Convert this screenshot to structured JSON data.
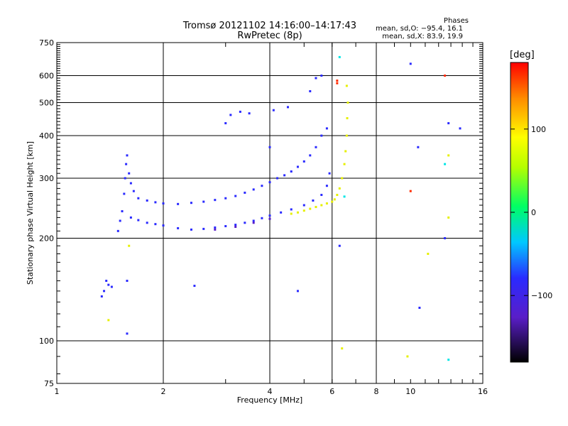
{
  "header": {
    "title_line1": "Tromsø 20121102 14:16:00–14:17:43",
    "title_line2": "RwPretec (8p)"
  },
  "phase_stats": {
    "heading": "Phases",
    "line_o": "mean, sd,O: −95.4, 16.1",
    "line_x": "mean, sd,X:  83.9, 19.9"
  },
  "chart_data": {
    "type": "scatter",
    "title": "Tromsø 20121102 14:16:00–14:17:43",
    "subtitle": "RwPretec (8p)",
    "xlabel": "Frequency [MHz]",
    "ylabel": "Stationary phase Virtual Height [km]",
    "x_scale": "log",
    "y_scale": "log",
    "xlim": [
      1,
      16
    ],
    "ylim": [
      75,
      750
    ],
    "x_ticks": [
      1,
      2,
      4,
      6,
      8,
      10,
      16
    ],
    "x_tick_labels": [
      "1",
      "2",
      "4",
      "6",
      "8",
      "10",
      "16"
    ],
    "x_major_grid": [
      2,
      4,
      6,
      8
    ],
    "y_ticks": [
      75,
      100,
      200,
      300,
      400,
      500,
      600,
      750
    ],
    "y_tick_labels": [
      "75",
      "100",
      "200",
      "300",
      "400",
      "500",
      "600",
      "750"
    ],
    "y_major_grid": [
      100,
      200,
      300,
      400,
      500,
      600
    ],
    "grid": true,
    "color_scale": {
      "label": "[deg]",
      "ticks": [
        100,
        0,
        -100
      ],
      "tick_labels": [
        "100",
        "0",
        "−100"
      ],
      "range": [
        -180,
        180
      ],
      "colors": {
        "o_mode": "#2a2aff",
        "x_mode": "#e6f000",
        "purple": "#5a1ec8"
      }
    },
    "series": [
      {
        "name": "O",
        "color": "#2a2aff",
        "points": [
          [
            1.34,
            135
          ],
          [
            1.36,
            140
          ],
          [
            1.38,
            150
          ],
          [
            1.4,
            146
          ],
          [
            1.43,
            144
          ],
          [
            1.49,
            210
          ],
          [
            1.51,
            225
          ],
          [
            1.53,
            240
          ],
          [
            1.55,
            270
          ],
          [
            1.56,
            300
          ],
          [
            1.57,
            330
          ],
          [
            1.58,
            350
          ],
          [
            1.6,
            310
          ],
          [
            1.62,
            290
          ],
          [
            1.65,
            275
          ],
          [
            1.7,
            262
          ],
          [
            1.8,
            258
          ],
          [
            1.9,
            255
          ],
          [
            2.0,
            253
          ],
          [
            2.2,
            252
          ],
          [
            2.4,
            254
          ],
          [
            2.6,
            256
          ],
          [
            2.8,
            259
          ],
          [
            3.0,
            262
          ],
          [
            3.2,
            266
          ],
          [
            3.4,
            272
          ],
          [
            3.6,
            278
          ],
          [
            3.8,
            285
          ],
          [
            4.0,
            292
          ],
          [
            4.2,
            300
          ],
          [
            4.4,
            306
          ],
          [
            4.6,
            314
          ],
          [
            4.8,
            324
          ],
          [
            5.0,
            336
          ],
          [
            5.2,
            350
          ],
          [
            5.4,
            370
          ],
          [
            5.6,
            400
          ],
          [
            5.8,
            420
          ],
          [
            1.62,
            230
          ],
          [
            1.7,
            226
          ],
          [
            1.8,
            222
          ],
          [
            1.9,
            220
          ],
          [
            2.0,
            218
          ],
          [
            2.2,
            214
          ],
          [
            2.4,
            212
          ],
          [
            2.6,
            213
          ],
          [
            2.8,
            215
          ],
          [
            3.0,
            217
          ],
          [
            3.2,
            219
          ],
          [
            3.4,
            222
          ],
          [
            3.6,
            225
          ],
          [
            3.8,
            229
          ],
          [
            4.0,
            233
          ],
          [
            4.3,
            238
          ],
          [
            4.6,
            243
          ],
          [
            5.0,
            250
          ],
          [
            5.3,
            258
          ],
          [
            5.6,
            268
          ],
          [
            5.8,
            285
          ],
          [
            5.9,
            310
          ],
          [
            3.1,
            460
          ],
          [
            3.3,
            470
          ],
          [
            3.5,
            465
          ],
          [
            4.1,
            475
          ],
          [
            4.5,
            485
          ],
          [
            5.4,
            590
          ],
          [
            5.6,
            600
          ],
          [
            5.2,
            540
          ],
          [
            1.58,
            150
          ],
          [
            1.58,
            105
          ],
          [
            2.45,
            145
          ],
          [
            3.0,
            435
          ],
          [
            4.0,
            370
          ],
          [
            6.3,
            190
          ],
          [
            10.0,
            650
          ],
          [
            10.5,
            370
          ],
          [
            10.6,
            125
          ],
          [
            12.5,
            200
          ],
          [
            12.8,
            435
          ],
          [
            13.8,
            420
          ],
          [
            4.8,
            140
          ]
        ]
      },
      {
        "name": "X",
        "color": "#e6f000",
        "points": [
          [
            4.6,
            236
          ],
          [
            4.8,
            238
          ],
          [
            5.0,
            241
          ],
          [
            5.2,
            244
          ],
          [
            5.4,
            247
          ],
          [
            5.6,
            250
          ],
          [
            5.8,
            253
          ],
          [
            6.0,
            256
          ],
          [
            6.1,
            260
          ],
          [
            6.2,
            268
          ],
          [
            6.3,
            280
          ],
          [
            6.4,
            300
          ],
          [
            6.5,
            330
          ],
          [
            6.55,
            360
          ],
          [
            6.6,
            400
          ],
          [
            6.62,
            450
          ],
          [
            6.65,
            500
          ],
          [
            6.6,
            560
          ],
          [
            1.4,
            115
          ],
          [
            1.6,
            190
          ],
          [
            6.4,
            95
          ],
          [
            9.8,
            90
          ],
          [
            11.2,
            180
          ],
          [
            12.8,
            230
          ],
          [
            12.8,
            350
          ]
        ]
      },
      {
        "name": "other",
        "color": "#5a1ec8",
        "points": [
          [
            2.8,
            212
          ],
          [
            3.2,
            216
          ],
          [
            3.6,
            222
          ],
          [
            4.0,
            228
          ]
        ]
      },
      {
        "name": "red",
        "color": "#ff2a00",
        "points": [
          [
            6.2,
            570
          ],
          [
            6.2,
            580
          ],
          [
            12.5,
            600
          ],
          [
            10.0,
            275
          ]
        ]
      },
      {
        "name": "cyan",
        "color": "#00e6e6",
        "points": [
          [
            6.3,
            680
          ],
          [
            6.5,
            265
          ],
          [
            12.5,
            330
          ],
          [
            12.8,
            88
          ]
        ]
      }
    ]
  }
}
